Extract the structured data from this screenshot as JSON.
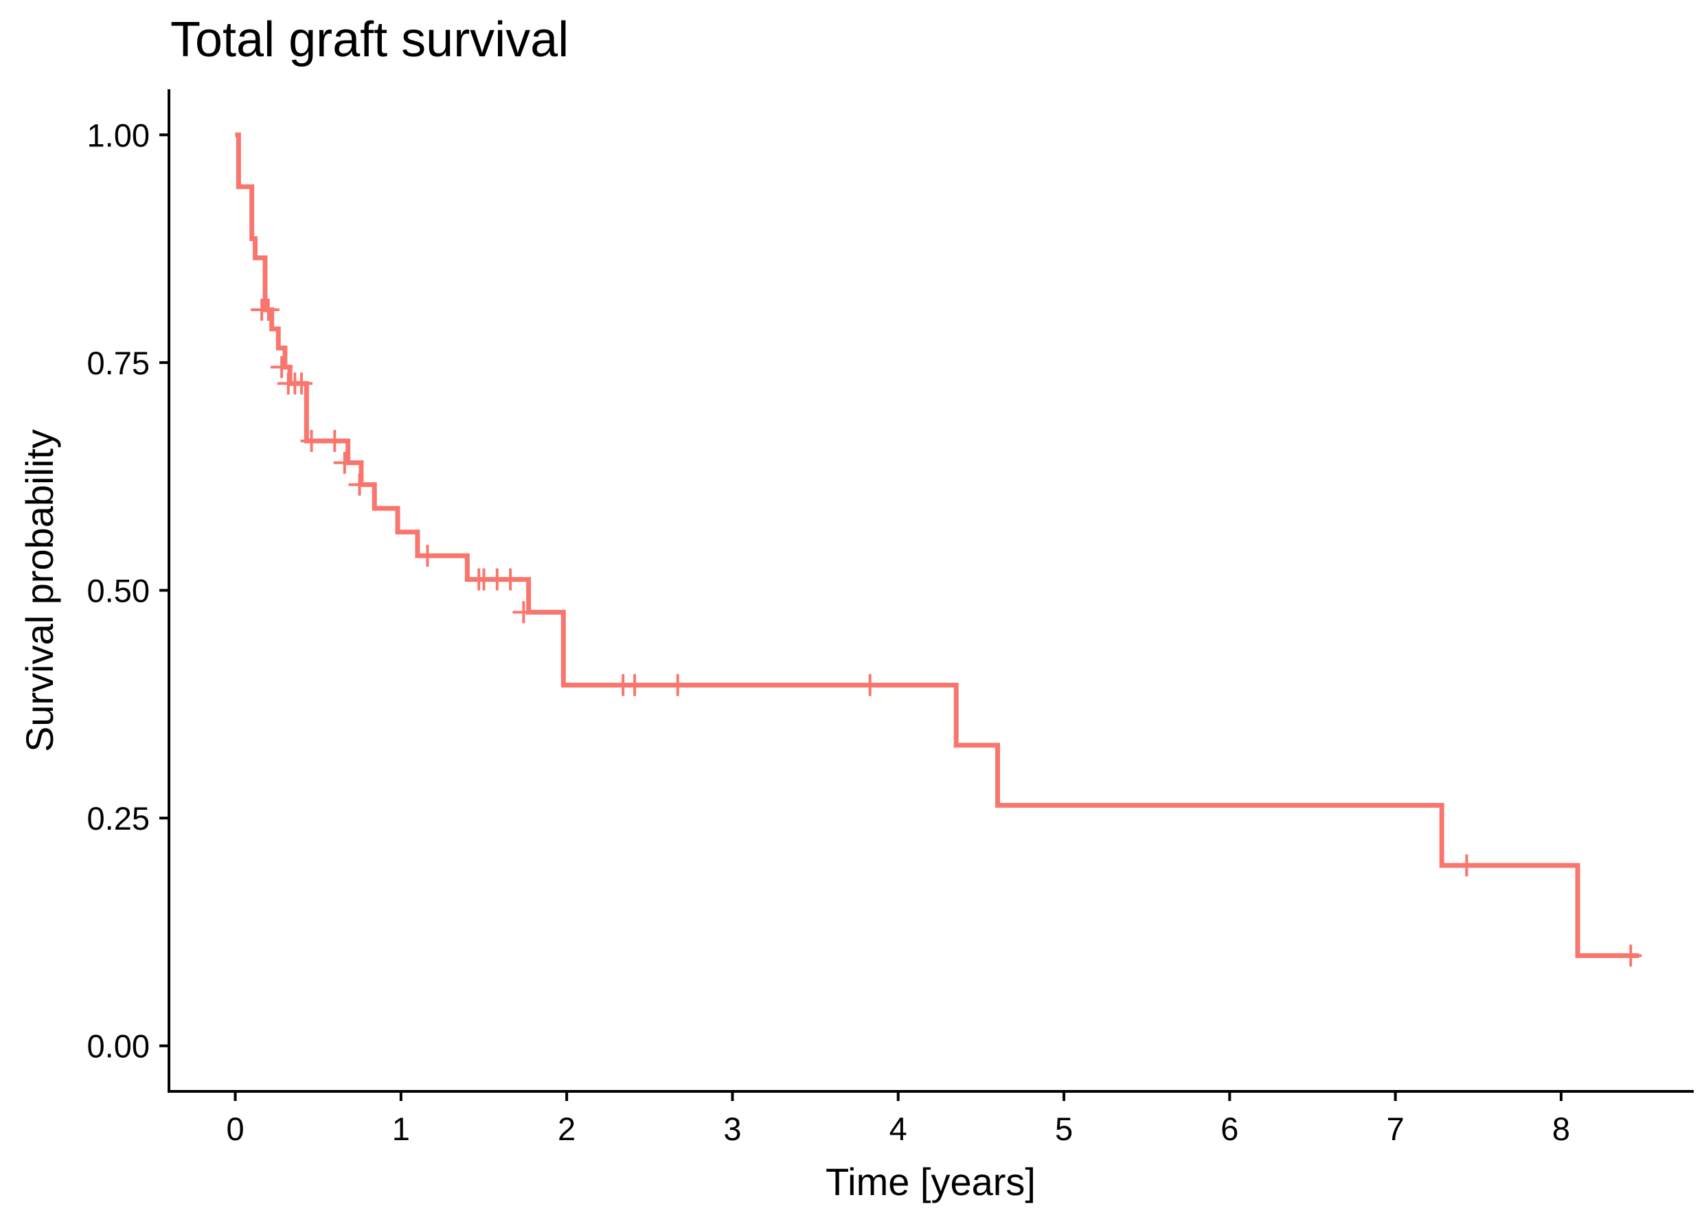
{
  "chart_data": {
    "type": "line",
    "title": "Total graft survival",
    "xlabel": "Time [years]",
    "ylabel": "Survival probability",
    "xlim": [
      -0.4,
      8.8
    ],
    "ylim": [
      -0.05,
      1.05
    ],
    "x_ticks": [
      0,
      1,
      2,
      3,
      4,
      5,
      6,
      7,
      8
    ],
    "x_tick_labels": [
      "0",
      "1",
      "2",
      "3",
      "4",
      "5",
      "6",
      "7",
      "8"
    ],
    "y_ticks": [
      0,
      0.25,
      0.5,
      0.75,
      1
    ],
    "y_tick_labels": [
      "0.00",
      "0.25",
      "0.50",
      "0.75",
      "1.00"
    ],
    "grid": false,
    "legend": "none",
    "series": [
      {
        "color": "#F8766D",
        "steps": [
          {
            "x": 0,
            "y": 1.0
          },
          {
            "x": 0.02,
            "y": 0.943
          },
          {
            "x": 0.1,
            "y": 0.886
          },
          {
            "x": 0.12,
            "y": 0.865
          },
          {
            "x": 0.18,
            "y": 0.808
          },
          {
            "x": 0.22,
            "y": 0.787
          },
          {
            "x": 0.26,
            "y": 0.766
          },
          {
            "x": 0.3,
            "y": 0.745
          },
          {
            "x": 0.33,
            "y": 0.727
          },
          {
            "x": 0.43,
            "y": 0.664
          },
          {
            "x": 0.68,
            "y": 0.64
          },
          {
            "x": 0.76,
            "y": 0.616
          },
          {
            "x": 0.84,
            "y": 0.59
          },
          {
            "x": 0.98,
            "y": 0.564
          },
          {
            "x": 1.1,
            "y": 0.538
          },
          {
            "x": 1.4,
            "y": 0.512
          },
          {
            "x": 1.77,
            "y": 0.476
          },
          {
            "x": 1.98,
            "y": 0.396
          },
          {
            "x": 4.35,
            "y": 0.33
          },
          {
            "x": 4.6,
            "y": 0.264
          },
          {
            "x": 7.28,
            "y": 0.198
          },
          {
            "x": 8.1,
            "y": 0.099
          }
        ],
        "end_x": 8.47,
        "censored": [
          {
            "x": 0.16,
            "y": 0.808
          },
          {
            "x": 0.2,
            "y": 0.808
          },
          {
            "x": 0.28,
            "y": 0.745
          },
          {
            "x": 0.32,
            "y": 0.727
          },
          {
            "x": 0.36,
            "y": 0.727
          },
          {
            "x": 0.4,
            "y": 0.727
          },
          {
            "x": 0.46,
            "y": 0.664
          },
          {
            "x": 0.6,
            "y": 0.664
          },
          {
            "x": 0.66,
            "y": 0.64
          },
          {
            "x": 0.75,
            "y": 0.616
          },
          {
            "x": 1.16,
            "y": 0.538
          },
          {
            "x": 1.47,
            "y": 0.512
          },
          {
            "x": 1.5,
            "y": 0.512
          },
          {
            "x": 1.58,
            "y": 0.512
          },
          {
            "x": 1.66,
            "y": 0.512
          },
          {
            "x": 1.74,
            "y": 0.476
          },
          {
            "x": 2.34,
            "y": 0.396
          },
          {
            "x": 2.41,
            "y": 0.396
          },
          {
            "x": 2.67,
            "y": 0.396
          },
          {
            "x": 3.83,
            "y": 0.396
          },
          {
            "x": 7.43,
            "y": 0.198
          },
          {
            "x": 8.42,
            "y": 0.099
          }
        ]
      }
    ]
  }
}
